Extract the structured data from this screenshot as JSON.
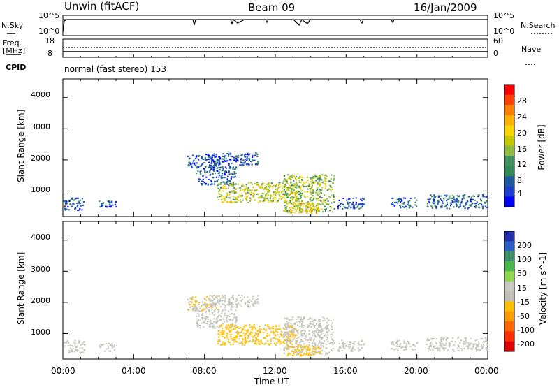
{
  "header": {
    "station": "Unwin (fitACF)",
    "beam": "Beam 09",
    "date": "16/Jan/2009"
  },
  "top_panels": {
    "nsky_label": "N.Sky",
    "nsky_ticks": [
      "10^5",
      "10^0"
    ],
    "nsearch_label": "N.Search",
    "nsearch_ticks": [
      "10^5",
      "10^0"
    ],
    "freq_label_1": "Freq.",
    "freq_label_2": "[MHz]",
    "freq_ticks": [
      "18",
      "8"
    ],
    "nave_label": "Nave",
    "nave_ticks": [
      "60",
      "0"
    ],
    "cpid_label": "CPID",
    "cpid_value": "normal (fast stereo) 153"
  },
  "power_panel": {
    "ylabel": "Slant Range [km]",
    "yticks": [
      "4000",
      "3000",
      "2000",
      "1000"
    ],
    "colorbar_label": "Power [dB]",
    "colorbar_ticks": [
      "28",
      "24",
      "20",
      "16",
      "12",
      "8",
      "4"
    ],
    "colorbar_colors": [
      "#ff0000",
      "#ff4000",
      "#ff8000",
      "#ffb000",
      "#ffd700",
      "#c8c800",
      "#8fbc3f",
      "#3f8f5f",
      "#2e8b57",
      "#1e5aa0",
      "#1c3fd0",
      "#0000ff"
    ]
  },
  "velocity_panel": {
    "ylabel": "Slant Range [km]",
    "yticks": [
      "4000",
      "3000",
      "2000",
      "1000"
    ],
    "colorbar_label": "Velocity [m s^-1]",
    "colorbar_ticks": [
      "200",
      "100",
      "50",
      "15",
      "-15",
      "-50",
      "-100",
      "-200"
    ],
    "colorbar_colors": [
      "#2030b0",
      "#2a60c8",
      "#3a8f6a",
      "#48b848",
      "#8fd64a",
      "#c8c8c0",
      "#c0c0b8",
      "#ffc000",
      "#ff9a00",
      "#ff6a00",
      "#ff3000",
      "#e00000"
    ]
  },
  "xaxis": {
    "label": "Time UT",
    "ticks": [
      "00:00",
      "04:00",
      "08:00",
      "12:00",
      "16:00",
      "20:00",
      "00:00"
    ]
  },
  "chart_data": {
    "type": "heatmap",
    "title": "Unwin (fitACF) Beam 09 16/Jan/2009",
    "xlabel": "Time UT",
    "ylabel": "Slant Range [km]",
    "xlim_hours": [
      0,
      24
    ],
    "ylim_km": [
      180,
      4600
    ],
    "grid": false,
    "panels": [
      "Power [dB]",
      "Velocity [m s^-1]"
    ],
    "power_range_db": [
      0,
      30
    ],
    "velocity_range_ms": [
      -250,
      250
    ],
    "echo_regions": [
      {
        "t_start": 0.0,
        "t_end": 1.2,
        "r_min": 400,
        "r_max": 800,
        "power_db": 6,
        "velocity_ms": -5
      },
      {
        "t_start": 2.0,
        "t_end": 3.0,
        "r_min": 450,
        "r_max": 700,
        "power_db": 5,
        "velocity_ms": -5
      },
      {
        "t_start": 7.0,
        "t_end": 8.8,
        "r_min": 1750,
        "r_max": 2200,
        "power_db": 6,
        "velocity_ms": -40
      },
      {
        "t_start": 8.2,
        "t_end": 11.0,
        "r_min": 1850,
        "r_max": 2250,
        "power_db": 5,
        "velocity_ms": -5
      },
      {
        "t_start": 7.5,
        "t_end": 9.8,
        "r_min": 1200,
        "r_max": 1800,
        "power_db": 6,
        "velocity_ms": -5
      },
      {
        "t_start": 8.7,
        "t_end": 13.2,
        "r_min": 650,
        "r_max": 1300,
        "power_db": 16,
        "velocity_ms": -60
      },
      {
        "t_start": 12.4,
        "t_end": 15.3,
        "r_min": 350,
        "r_max": 1550,
        "power_db": 14,
        "velocity_ms": -5
      },
      {
        "t_start": 12.6,
        "t_end": 14.5,
        "r_min": 300,
        "r_max": 650,
        "power_db": 18,
        "velocity_ms": -60
      },
      {
        "t_start": 15.5,
        "t_end": 17.0,
        "r_min": 450,
        "r_max": 800,
        "power_db": 6,
        "velocity_ms": -5
      },
      {
        "t_start": 18.5,
        "t_end": 20.0,
        "r_min": 480,
        "r_max": 800,
        "power_db": 6,
        "velocity_ms": -5
      },
      {
        "t_start": 20.5,
        "t_end": 24.0,
        "r_min": 450,
        "r_max": 900,
        "power_db": 7,
        "velocity_ms": -5
      }
    ]
  }
}
